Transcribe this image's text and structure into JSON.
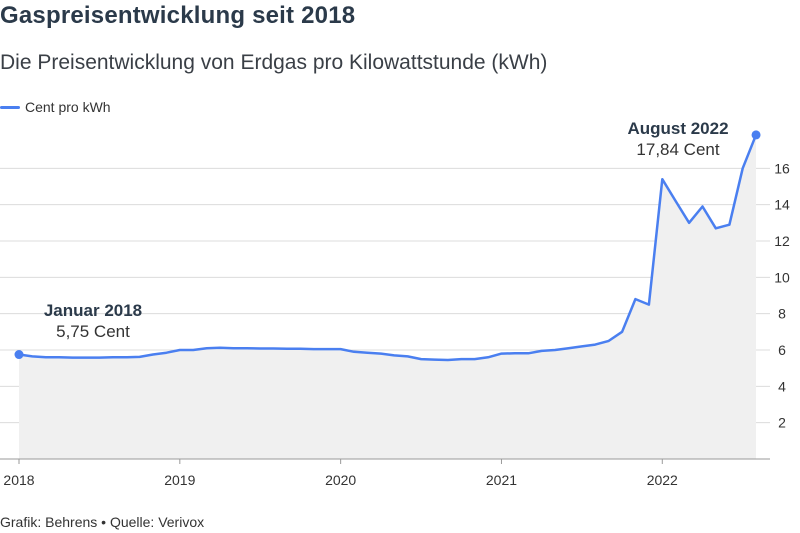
{
  "header": {
    "title": "Gaspreisentwicklung seit 2018",
    "subtitle": "Die Preisentwicklung von Erdgas pro Kilowattstunde (kWh)"
  },
  "legend": {
    "label": "Cent pro kWh"
  },
  "footer": {
    "text": "Grafik: Behrens • Quelle: Verivox"
  },
  "colors": {
    "line": "#4a7ff0",
    "area": "#f0f0f0",
    "grid": "#dcdcdc"
  },
  "chart_data": {
    "type": "area",
    "title": "Gaspreisentwicklung seit 2018",
    "subtitle": "Die Preisentwicklung von Erdgas pro Kilowattstunde (kWh)",
    "xlabel": "",
    "ylabel": "",
    "xlim": [
      2018.0,
      2022.62
    ],
    "ylim": [
      0,
      18
    ],
    "y_ticks": [
      2,
      4,
      6,
      8,
      10,
      12,
      14,
      16
    ],
    "x_ticks": [
      2018,
      2019,
      2020,
      2021,
      2022
    ],
    "grid": true,
    "legend_position": "top-left",
    "series": [
      {
        "name": "Cent pro kWh",
        "x": [
          2018.0,
          2018.083,
          2018.167,
          2018.25,
          2018.333,
          2018.417,
          2018.5,
          2018.583,
          2018.667,
          2018.75,
          2018.833,
          2018.917,
          2019.0,
          2019.083,
          2019.167,
          2019.25,
          2019.333,
          2019.417,
          2019.5,
          2019.583,
          2019.667,
          2019.75,
          2019.833,
          2019.917,
          2020.0,
          2020.083,
          2020.167,
          2020.25,
          2020.333,
          2020.417,
          2020.5,
          2020.583,
          2020.667,
          2020.75,
          2020.833,
          2020.917,
          2021.0,
          2021.083,
          2021.167,
          2021.25,
          2021.333,
          2021.417,
          2021.5,
          2021.583,
          2021.667,
          2021.75,
          2021.833,
          2021.917,
          2022.0,
          2022.083,
          2022.167,
          2022.25,
          2022.333,
          2022.417,
          2022.5,
          2022.583
        ],
        "values": [
          5.75,
          5.65,
          5.6,
          5.6,
          5.58,
          5.58,
          5.58,
          5.6,
          5.6,
          5.62,
          5.75,
          5.85,
          6.0,
          6.0,
          6.1,
          6.12,
          6.1,
          6.1,
          6.08,
          6.08,
          6.07,
          6.07,
          6.05,
          6.05,
          6.05,
          5.9,
          5.85,
          5.8,
          5.7,
          5.65,
          5.5,
          5.47,
          5.45,
          5.5,
          5.5,
          5.6,
          5.8,
          5.82,
          5.82,
          5.95,
          6.0,
          6.1,
          6.2,
          6.3,
          6.5,
          7.0,
          8.8,
          8.5,
          15.4,
          14.2,
          13.0,
          13.9,
          12.7,
          12.9,
          16.0,
          17.84
        ]
      }
    ],
    "annotations": [
      {
        "x": 2018.0,
        "y": 5.75,
        "title": "Januar 2018",
        "value": "5,75 Cent"
      },
      {
        "x": 2022.583,
        "y": 17.84,
        "title": "August 2022",
        "value": "17,84 Cent"
      }
    ]
  }
}
